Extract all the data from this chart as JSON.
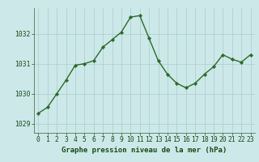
{
  "x": [
    0,
    1,
    2,
    3,
    4,
    5,
    6,
    7,
    8,
    9,
    10,
    11,
    12,
    13,
    14,
    15,
    16,
    17,
    18,
    19,
    20,
    21,
    22,
    23
  ],
  "y": [
    1029.35,
    1029.55,
    1030.0,
    1030.45,
    1030.95,
    1031.0,
    1031.1,
    1031.55,
    1031.8,
    1032.05,
    1032.55,
    1032.6,
    1031.85,
    1031.1,
    1030.65,
    1030.35,
    1030.2,
    1030.35,
    1030.65,
    1030.9,
    1031.3,
    1031.15,
    1031.05,
    1031.3
  ],
  "line_color": "#2d6a2d",
  "marker_color": "#2d6a2d",
  "bg_color": "#cce8e8",
  "grid_color": "#aacccc",
  "xlabel": "Graphe pression niveau de la mer (hPa)",
  "xlabel_color": "#1a4a1a",
  "tick_color": "#1a4a1a",
  "ylim": [
    1028.7,
    1032.85
  ],
  "yticks": [
    1029,
    1030,
    1031,
    1032
  ],
  "xticks": [
    0,
    1,
    2,
    3,
    4,
    5,
    6,
    7,
    8,
    9,
    10,
    11,
    12,
    13,
    14,
    15,
    16,
    17,
    18,
    19,
    20,
    21,
    22,
    23
  ],
  "tick_fontsize": 5.8,
  "xlabel_fontsize": 6.5,
  "linewidth": 1.0,
  "markersize": 2.2
}
